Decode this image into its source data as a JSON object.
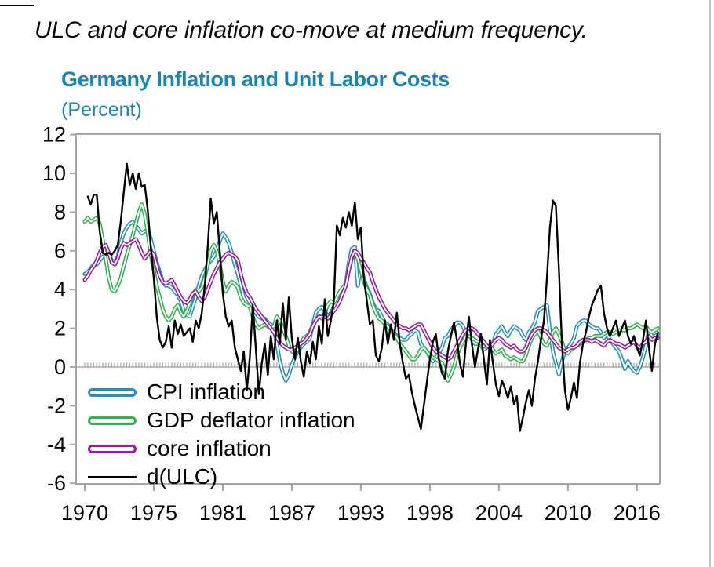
{
  "page": {
    "caption": "ULC and core inflation co-move at medium frequency."
  },
  "chart": {
    "title": "Germany Inflation and Unit Labor Costs",
    "subtitle": "(Percent)",
    "title_color": "#1a85b5",
    "frame_color": "#a6a6a6",
    "zero_line_color": "#b3b3b3"
  },
  "chart_data": {
    "type": "line",
    "title": "Germany Inflation and Unit Labor Costs",
    "subtitle": "(Percent)",
    "frequency": "quarterly",
    "x_start": 1970.0,
    "x_step": 0.25,
    "ylim": [
      -6,
      12
    ],
    "grid": false,
    "zero_axis_with_quarterly_ticks": true,
    "legend_position": "inside-bottom-left",
    "y_ticks": [
      12,
      10,
      8,
      6,
      4,
      2,
      0,
      -2,
      -4,
      -6
    ],
    "x_ticks": [
      {
        "label": "1970",
        "t": 1970.0
      },
      {
        "label": "1975",
        "t": 1975.75
      },
      {
        "label": "1981",
        "t": 1981.5
      },
      {
        "label": "1987",
        "t": 1987.25
      },
      {
        "label": "1993",
        "t": 1993.0
      },
      {
        "label": "1998",
        "t": 1998.75
      },
      {
        "label": "2004",
        "t": 2004.5
      },
      {
        "label": "2010",
        "t": 2010.25
      },
      {
        "label": "2016",
        "t": 2016.0
      }
    ],
    "series": [
      {
        "name": "CPI inflation",
        "color": "#2191c4",
        "outlined": true,
        "values": [
          4.8,
          4.9,
          5.1,
          5.3,
          5.3,
          5.5,
          5.7,
          5.8,
          5.9,
          5.5,
          5.4,
          5.7,
          6.4,
          6.9,
          7.2,
          7.4,
          7.5,
          7.3,
          7.1,
          6.9,
          7.0,
          7.1,
          6.6,
          6.0,
          5.4,
          4.9,
          4.4,
          4.2,
          4.2,
          4.1,
          3.9,
          3.7,
          3.4,
          2.9,
          2.7,
          2.6,
          3.1,
          3.6,
          4.2,
          4.7,
          5.0,
          5.3,
          5.5,
          5.7,
          6.0,
          6.5,
          6.9,
          6.7,
          6.4,
          5.9,
          5.3,
          4.8,
          4.2,
          3.6,
          3.3,
          3.1,
          3.0,
          2.8,
          2.6,
          2.5,
          2.5,
          2.3,
          2.2,
          2.0,
          1.2,
          0.3,
          -0.3,
          -0.7,
          -0.4,
          0.1,
          0.5,
          0.8,
          1.0,
          1.2,
          1.3,
          1.5,
          2.2,
          2.8,
          3.0,
          3.1,
          2.9,
          2.6,
          2.8,
          3.1,
          3.3,
          3.7,
          4.0,
          4.3,
          5.4,
          6.1,
          6.2,
          4.2,
          5.2,
          4.6,
          4.1,
          3.8,
          3.3,
          3.0,
          2.9,
          2.6,
          2.3,
          2.2,
          1.9,
          1.8,
          1.6,
          1.5,
          1.4,
          1.4,
          1.6,
          1.7,
          1.9,
          1.8,
          1.2,
          1.0,
          0.8,
          0.5,
          0.3,
          0.5,
          0.7,
          1.0,
          1.5,
          1.6,
          1.9,
          2.1,
          2.3,
          2.3,
          2.1,
          1.7,
          1.8,
          1.4,
          1.2,
          1.2,
          1.1,
          0.9,
          1.0,
          1.1,
          1.2,
          1.7,
          1.9,
          2.1,
          1.8,
          1.6,
          1.9,
          2.1,
          2.0,
          1.9,
          1.6,
          1.4,
          1.8,
          2.0,
          2.3,
          2.9,
          3.0,
          3.1,
          3.2,
          1.9,
          0.8,
          0.2,
          -0.4,
          0.3,
          0.8,
          1.0,
          1.2,
          1.5,
          2.1,
          2.3,
          2.4,
          2.4,
          2.2,
          2.1,
          2.0,
          2.0,
          1.8,
          1.5,
          1.7,
          1.4,
          1.2,
          1.0,
          0.8,
          0.4,
          -0.1,
          0.3,
          0.0,
          -0.2,
          -0.3,
          0.0,
          0.5,
          1.1,
          1.9,
          1.6,
          1.6,
          1.7
        ]
      },
      {
        "name": "GDP deflator inflation",
        "color": "#2db44a",
        "outlined": true,
        "values": [
          7.5,
          7.7,
          7.5,
          7.6,
          7.7,
          7.4,
          6.6,
          5.6,
          4.6,
          4.0,
          3.9,
          4.2,
          4.6,
          5.2,
          5.8,
          6.3,
          6.8,
          7.4,
          8.0,
          8.4,
          7.9,
          6.9,
          5.8,
          5.0,
          4.2,
          3.6,
          3.0,
          2.6,
          2.4,
          2.6,
          3.0,
          3.2,
          2.8,
          2.6,
          2.9,
          3.3,
          3.7,
          4.0,
          3.9,
          4.1,
          4.6,
          5.3,
          6.0,
          6.3,
          6.0,
          5.3,
          4.4,
          3.9,
          4.2,
          4.4,
          4.3,
          4.1,
          3.6,
          3.3,
          3.2,
          3.1,
          2.6,
          2.2,
          2.0,
          2.1,
          2.2,
          2.1,
          2.0,
          2.1,
          2.6,
          2.4,
          2.0,
          1.6,
          1.1,
          0.8,
          0.7,
          0.9,
          1.2,
          1.5,
          1.6,
          1.8,
          2.2,
          2.4,
          2.6,
          2.5,
          2.8,
          3.2,
          3.4,
          3.3,
          3.6,
          3.9,
          4.1,
          4.3,
          5.0,
          5.6,
          5.9,
          5.6,
          5.0,
          4.4,
          4.0,
          3.7,
          3.2,
          2.8,
          2.5,
          2.4,
          2.2,
          2.1,
          1.9,
          1.7,
          1.5,
          1.2,
          1.0,
          0.8,
          0.6,
          0.4,
          0.4,
          0.6,
          0.9,
          1.0,
          0.8,
          0.6,
          0.5,
          0.4,
          0.3,
          0.2,
          -0.2,
          -0.7,
          -0.4,
          0.0,
          0.6,
          1.0,
          1.3,
          1.6,
          1.6,
          1.5,
          1.4,
          1.3,
          1.2,
          1.1,
          1.0,
          1.1,
          0.9,
          0.7,
          0.8,
          0.9,
          0.6,
          0.5,
          0.4,
          0.5,
          0.4,
          0.3,
          0.3,
          0.6,
          1.1,
          1.5,
          1.7,
          1.9,
          1.5,
          1.2,
          1.1,
          1.4,
          1.8,
          2.0,
          1.7,
          1.3,
          0.8,
          0.7,
          0.9,
          1.0,
          1.1,
          1.2,
          1.3,
          1.4,
          1.5,
          1.5,
          1.6,
          1.6,
          1.6,
          1.7,
          1.8,
          1.8,
          1.7,
          1.8,
          1.9,
          1.9,
          1.9,
          2.0,
          2.0,
          2.1,
          2.2,
          2.1,
          2.0,
          2.1,
          1.9,
          1.8,
          1.9,
          2.0
        ]
      },
      {
        "name": "core inflation",
        "color": "#9c17a3",
        "outlined": true,
        "values": [
          4.5,
          4.7,
          5.0,
          5.2,
          5.5,
          5.9,
          6.2,
          6.3,
          5.9,
          5.4,
          5.3,
          5.6,
          6.1,
          6.4,
          6.3,
          6.4,
          6.5,
          6.6,
          6.3,
          5.9,
          5.6,
          5.8,
          6.0,
          5.8,
          5.2,
          4.7,
          4.4,
          4.3,
          4.4,
          4.5,
          4.2,
          3.9,
          3.6,
          3.4,
          3.3,
          3.5,
          3.8,
          3.9,
          3.6,
          3.4,
          3.6,
          4.0,
          4.4,
          4.8,
          5.1,
          5.4,
          5.6,
          5.8,
          5.9,
          5.8,
          5.7,
          5.5,
          4.8,
          4.2,
          3.8,
          3.6,
          3.3,
          3.0,
          2.8,
          2.6,
          2.4,
          2.2,
          2.0,
          1.8,
          1.5,
          1.3,
          1.1,
          1.0,
          0.9,
          0.9,
          1.0,
          1.1,
          1.2,
          1.3,
          1.5,
          1.7,
          2.1,
          2.4,
          2.6,
          2.6,
          2.6,
          2.5,
          2.7,
          2.9,
          3.1,
          3.4,
          3.8,
          4.2,
          5.0,
          5.7,
          6.0,
          5.9,
          5.6,
          5.4,
          5.1,
          4.9,
          4.4,
          4.0,
          3.6,
          3.3,
          3.0,
          2.8,
          2.6,
          2.4,
          2.2,
          2.1,
          2.0,
          2.0,
          1.9,
          2.0,
          2.1,
          2.2,
          2.2,
          1.9,
          1.6,
          1.3,
          1.0,
          0.8,
          0.7,
          0.6,
          0.5,
          0.4,
          0.5,
          0.8,
          1.1,
          1.4,
          1.7,
          1.9,
          2.0,
          2.0,
          1.9,
          1.7,
          1.5,
          1.3,
          1.1,
          1.0,
          1.2,
          1.4,
          1.5,
          1.4,
          1.2,
          1.1,
          1.0,
          1.1,
          0.9,
          0.8,
          0.8,
          1.0,
          1.4,
          1.7,
          1.9,
          2.0,
          2.0,
          1.9,
          1.8,
          1.6,
          1.4,
          1.2,
          1.0,
          0.9,
          0.8,
          0.9,
          1.0,
          1.0,
          1.1,
          1.3,
          1.4,
          1.4,
          1.4,
          1.3,
          1.4,
          1.3,
          1.2,
          1.1,
          1.3,
          1.4,
          1.3,
          1.2,
          1.2,
          1.1,
          1.0,
          1.1,
          1.2,
          1.3,
          1.1,
          1.0,
          1.2,
          1.3,
          1.6,
          1.4,
          1.5,
          1.5
        ]
      },
      {
        "name": "d(ULC)",
        "color": "#000000",
        "outlined": false,
        "values": [
          null,
          8.8,
          8.4,
          8.9,
          8.9,
          7.0,
          5.9,
          5.8,
          5.9,
          5.8,
          6.0,
          6.3,
          7.5,
          9.0,
          10.5,
          9.4,
          10.0,
          9.2,
          10.0,
          9.3,
          9.4,
          8.1,
          6.2,
          4.6,
          2.6,
          1.4,
          1.0,
          1.3,
          2.1,
          1.0,
          2.4,
          1.7,
          2.2,
          1.6,
          1.8,
          2.0,
          1.3,
          2.4,
          2.0,
          2.8,
          4.2,
          6.2,
          8.7,
          7.4,
          8.0,
          6.0,
          3.8,
          2.6,
          2.1,
          2.4,
          1.0,
          0.4,
          -0.2,
          0.8,
          -1.2,
          0.5,
          3.2,
          1.0,
          -1.4,
          0.2,
          1.2,
          -0.4,
          1.6,
          0.4,
          2.4,
          1.2,
          3.3,
          1.4,
          3.6,
          1.5,
          0.4,
          1.5,
          0.3,
          -0.5,
          0.8,
          0.2,
          1.3,
          0.4,
          2.1,
          1.2,
          3.5,
          1.6,
          2.4,
          3.4,
          7.3,
          6.8,
          7.7,
          7.2,
          8.0,
          7.3,
          8.5,
          6.6,
          7.2,
          4.6,
          3.4,
          2.2,
          2.4,
          0.6,
          0.3,
          1.0,
          2.4,
          1.2,
          2.2,
          1.4,
          2.8,
          1.2,
          0.2,
          -0.6,
          -0.4,
          -1.3,
          -2.0,
          -2.6,
          -3.2,
          -2.0,
          -0.8,
          0.4,
          1.3,
          1.7,
          0.4,
          -0.3,
          -0.6,
          0.8,
          1.6,
          2.3,
          1.4,
          0.2,
          -0.5,
          1.2,
          2.6,
          1.2,
          0.0,
          0.9,
          1.7,
          0.4,
          -0.9,
          1.4,
          0.2,
          -0.9,
          -1.5,
          -0.7,
          -1.1,
          -1.6,
          -1.0,
          -1.9,
          -1.5,
          -3.3,
          -2.6,
          -1.8,
          -1.2,
          -2.0,
          -0.6,
          0.3,
          1.4,
          2.4,
          4.6,
          7.2,
          8.6,
          8.3,
          5.0,
          1.2,
          -1.2,
          -2.2,
          -1.6,
          -0.8,
          -1.6,
          0.2,
          1.2,
          1.8,
          2.6,
          3.2,
          3.6,
          4.0,
          4.2,
          2.8,
          2.0,
          1.6,
          2.0,
          2.4,
          1.6,
          2.0,
          2.4,
          1.6,
          1.2,
          1.6,
          1.0,
          0.6,
          1.4,
          2.4,
          1.0,
          -0.2,
          1.2,
          1.8
        ]
      }
    ]
  }
}
